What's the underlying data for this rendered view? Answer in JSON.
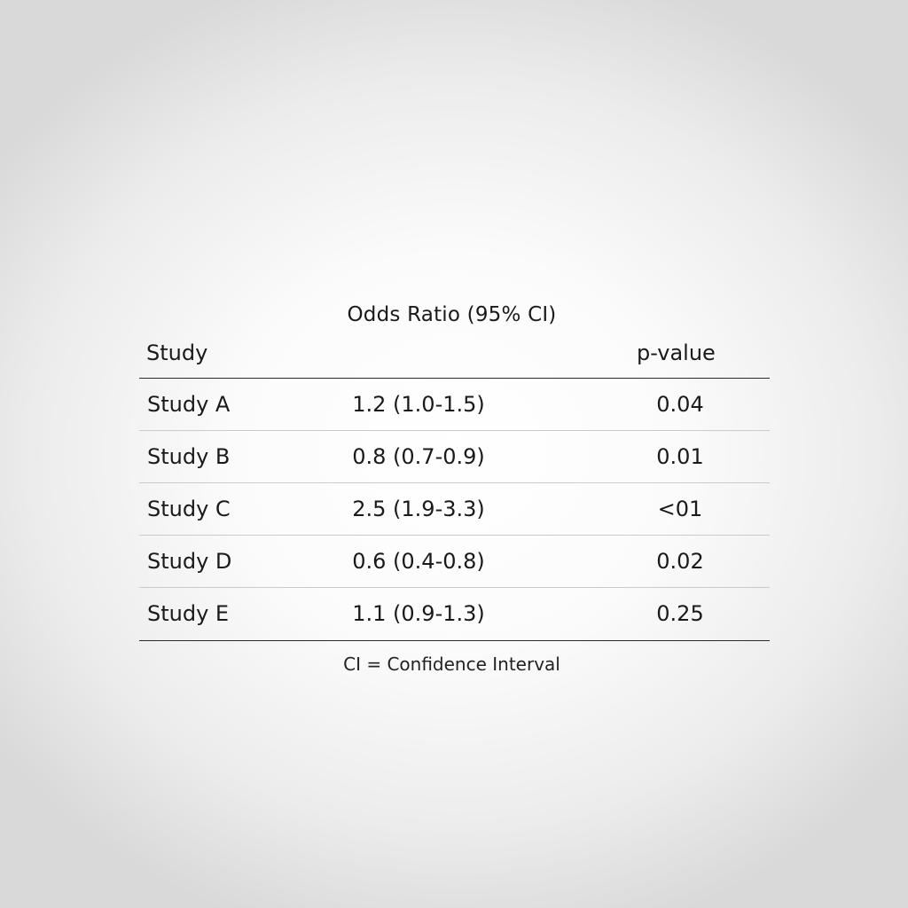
{
  "table": {
    "title": "Odds Ratio (95% CI)",
    "headers": {
      "study": "Study",
      "pvalue": "p-value"
    },
    "rows": [
      {
        "study": "Study A",
        "odds_ratio": "1.2 (1.0-1.5)",
        "p_value": "0.04"
      },
      {
        "study": "Study B",
        "odds_ratio": "0.8 (0.7-0.9)",
        "p_value": "0.01"
      },
      {
        "study": "Study C",
        "odds_ratio": "2.5 (1.9-3.3)",
        "p_value": "<01"
      },
      {
        "study": "Study D",
        "odds_ratio": "0.6 (0.4-0.8)",
        "p_value": "0.02"
      },
      {
        "study": "Study E",
        "odds_ratio": "1.1 (0.9-1.3)",
        "p_value": "0.25"
      }
    ],
    "footnote": "CI = Confidence Interval"
  }
}
